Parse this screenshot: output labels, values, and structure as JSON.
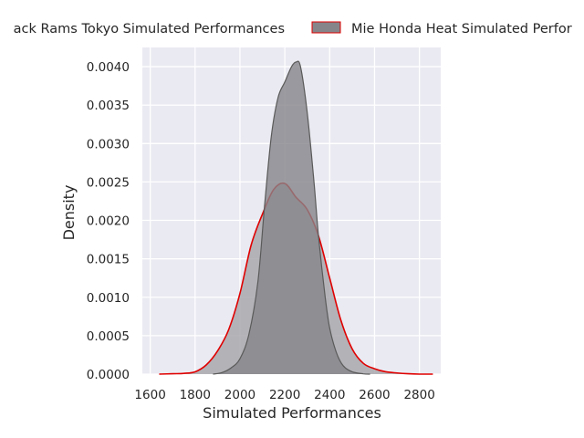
{
  "chart_data": {
    "type": "area",
    "xlabel": "Simulated Performances",
    "ylabel": "Density",
    "xlim": [
      1565,
      2895
    ],
    "ylim": [
      0,
      0.00425
    ],
    "x_ticks": [
      1600,
      1800,
      2000,
      2200,
      2400,
      2600,
      2800
    ],
    "x_tick_labels": [
      "1600",
      "1800",
      "2000",
      "2200",
      "2400",
      "2600",
      "2800"
    ],
    "y_ticks": [
      0,
      0.0005,
      0.001,
      0.0015,
      0.002,
      0.0025,
      0.003,
      0.0035,
      0.004
    ],
    "y_tick_labels": [
      "0.0000",
      "0.0005",
      "0.0010",
      "0.0015",
      "0.0020",
      "0.0025",
      "0.0030",
      "0.0035",
      "0.0040"
    ],
    "grid": true,
    "legend_position": "top-center",
    "background_color": "#eaeaf2",
    "series": [
      {
        "name": "Black Rams Tokyo Simulated Performances",
        "legend_label": "ack Rams Tokyo Simulated Performances",
        "fill_color": "#a9a8ad",
        "line_color": "#e00000",
        "x": [
          1640,
          1700,
          1750,
          1800,
          1850,
          1900,
          1950,
          2000,
          2050,
          2100,
          2150,
          2200,
          2250,
          2300,
          2350,
          2400,
          2450,
          2500,
          2550,
          2600,
          2650,
          2700,
          2750,
          2800,
          2860
        ],
        "y": [
          0.0,
          5e-06,
          1e-05,
          3e-05,
          0.00012,
          0.0003,
          0.00058,
          0.00105,
          0.00168,
          0.00208,
          0.0024,
          0.00248,
          0.0023,
          0.00214,
          0.0018,
          0.00125,
          0.0007,
          0.00033,
          0.00014,
          7e-05,
          3e-05,
          1.5e-05,
          5e-06,
          0.0,
          0.0
        ]
      },
      {
        "name": "Mie Honda Heat Simulated Performances",
        "legend_label": "Mie Honda Heat Simulated Perfor",
        "fill_color": "#86858a",
        "line_color": "#5a5a5a",
        "x": [
          1880,
          1920,
          1960,
          2000,
          2040,
          2080,
          2110,
          2140,
          2170,
          2200,
          2230,
          2250,
          2270,
          2300,
          2330,
          2350,
          2380,
          2400,
          2430,
          2460,
          2500,
          2550,
          2580
        ],
        "y": [
          0.0,
          2e-05,
          8e-05,
          0.0002,
          0.00052,
          0.0012,
          0.0022,
          0.0031,
          0.0036,
          0.0038,
          0.004,
          0.00406,
          0.004,
          0.0034,
          0.0025,
          0.0018,
          0.001,
          0.0006,
          0.00028,
          0.00011,
          3e-05,
          4e-06,
          0.0
        ]
      }
    ]
  }
}
